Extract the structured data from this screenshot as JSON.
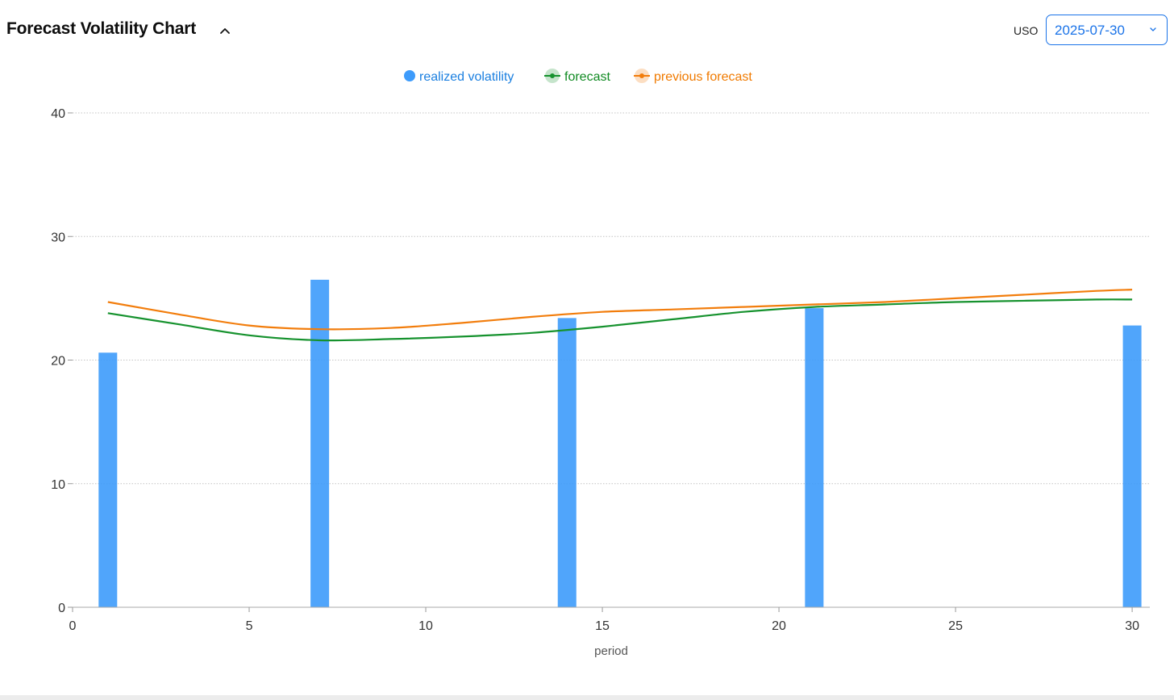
{
  "header": {
    "title": "Forecast Volatility Chart",
    "ticker": "USO",
    "selected_date": "2025-07-30"
  },
  "icons": {
    "collapse": "chevron-up-icon",
    "dropdown": "chevron-down-icon"
  },
  "colors": {
    "realized": "#3d9bfb",
    "forecast": "#16922e",
    "previous_forecast": "#f27d0c",
    "legend_realized_text": "#1a7fe0",
    "legend_forecast_text": "#108a22",
    "legend_previous_text": "#f07a00"
  },
  "chart_data": {
    "type": "bar",
    "xlabel": "period",
    "ylabel": "",
    "xlim": [
      0,
      30.5
    ],
    "ylim": [
      0,
      40
    ],
    "x_ticks": [
      0,
      5,
      10,
      15,
      20,
      25,
      30
    ],
    "y_ticks": [
      0,
      10,
      20,
      30,
      40
    ],
    "grid": "horizontal dotted",
    "legend_position": "top-center",
    "series": [
      {
        "name": "realized volatility",
        "type": "bar",
        "x": [
          1,
          7,
          14,
          21,
          30
        ],
        "values": [
          20.6,
          26.5,
          23.4,
          24.2,
          22.8
        ]
      },
      {
        "name": "forecast",
        "type": "line",
        "x": [
          1,
          3,
          5,
          7,
          9,
          11,
          13,
          15,
          17,
          19,
          21,
          23,
          25,
          27,
          29,
          30
        ],
        "values": [
          23.8,
          22.9,
          22.0,
          21.6,
          21.7,
          21.9,
          22.2,
          22.7,
          23.3,
          23.9,
          24.3,
          24.5,
          24.7,
          24.8,
          24.9,
          24.9
        ]
      },
      {
        "name": "previous forecast",
        "type": "line",
        "x": [
          1,
          3,
          5,
          7,
          9,
          11,
          13,
          15,
          17,
          19,
          21,
          23,
          25,
          27,
          29,
          30
        ],
        "values": [
          24.7,
          23.7,
          22.8,
          22.5,
          22.6,
          23.0,
          23.5,
          23.9,
          24.1,
          24.3,
          24.5,
          24.7,
          25.0,
          25.3,
          25.6,
          25.7
        ]
      }
    ]
  }
}
